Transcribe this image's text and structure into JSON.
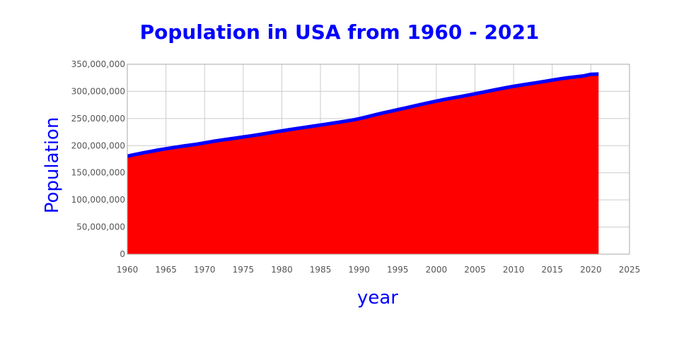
{
  "colors": {
    "title": "#0000ff",
    "axis_title": "#0000ff",
    "area_fill": "#ff0000",
    "line": "#0000ff",
    "grid": "#cccccc",
    "tick_text": "#555555"
  },
  "chart_data": {
    "type": "area",
    "title": "Population in USA from 1960 - 2021",
    "xlabel": "year",
    "ylabel": "Population",
    "xlim": [
      1960,
      2025
    ],
    "ylim": [
      0,
      350000000
    ],
    "x_ticks": [
      1960,
      1965,
      1970,
      1975,
      1980,
      1985,
      1990,
      1995,
      2000,
      2005,
      2010,
      2015,
      2020,
      2025
    ],
    "x_tick_labels": [
      "1960",
      "1965",
      "1970",
      "1975",
      "1980",
      "1985",
      "1990",
      "1995",
      "2000",
      "2005",
      "2010",
      "2015",
      "2020",
      "2025"
    ],
    "y_ticks": [
      0,
      50000000,
      100000000,
      150000000,
      200000000,
      250000000,
      300000000,
      350000000
    ],
    "y_tick_labels": [
      "0",
      "50,000,000",
      "100,000,000",
      "150,000,000",
      "200,000,000",
      "250,000,000",
      "300,000,000",
      "350,000,000"
    ],
    "grid": true,
    "series": [
      {
        "x": [
          1960,
          1961,
          1962,
          1963,
          1964,
          1965,
          1966,
          1967,
          1968,
          1969,
          1970,
          1971,
          1972,
          1973,
          1974,
          1975,
          1976,
          1977,
          1978,
          1979,
          1980,
          1981,
          1982,
          1983,
          1984,
          1985,
          1986,
          1987,
          1988,
          1989,
          1990,
          1991,
          1992,
          1993,
          1994,
          1995,
          1996,
          1997,
          1998,
          1999,
          2000,
          2001,
          2002,
          2003,
          2004,
          2005,
          2006,
          2007,
          2008,
          2009,
          2010,
          2011,
          2012,
          2013,
          2014,
          2015,
          2016,
          2017,
          2018,
          2019,
          2020,
          2021
        ],
        "values": [
          180671000,
          183691000,
          186538000,
          189242000,
          191889000,
          194303000,
          196560000,
          198712000,
          200706000,
          202677000,
          205052000,
          207661000,
          209896000,
          211909000,
          213854000,
          215973000,
          218035000,
          220239000,
          222585000,
          225055000,
          227225000,
          229466000,
          231664000,
          233792000,
          235825000,
          237924000,
          240133000,
          242289000,
          244499000,
          246819000,
          249623000,
          252981000,
          256514000,
          259919000,
          263126000,
          266278000,
          269394000,
          272657000,
          275854000,
          279040000,
          282162000,
          284969000,
          287625000,
          290108000,
          292805000,
          295517000,
          298380000,
          301231000,
          304094000,
          306772000,
          309327000,
          311583000,
          313878000,
          316060000,
          318386000,
          320742000,
          323071000,
          325147000,
          326838000,
          328330000,
          331501000,
          331894000
        ]
      }
    ]
  }
}
